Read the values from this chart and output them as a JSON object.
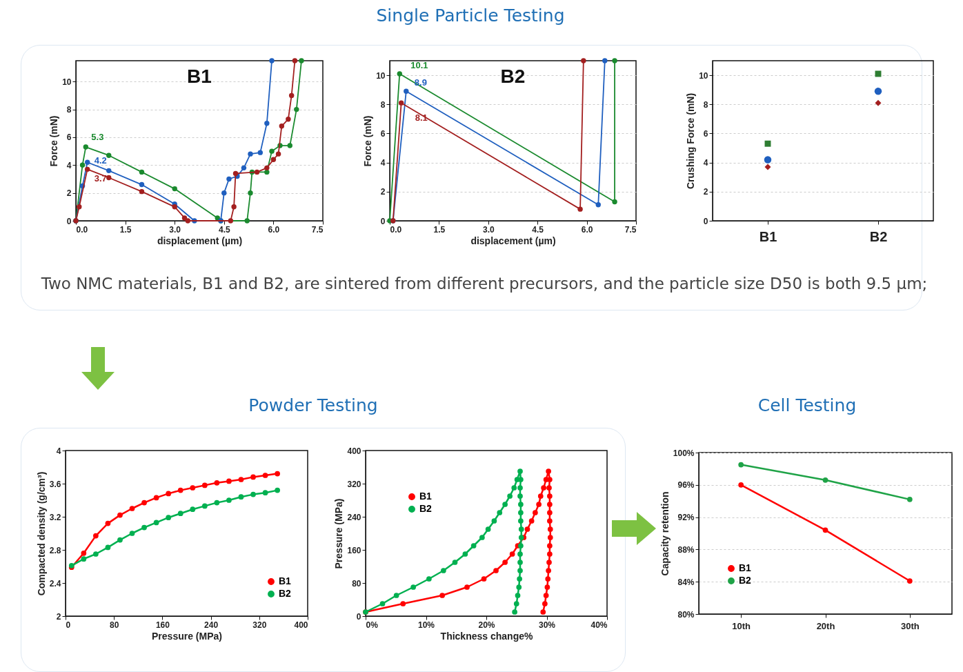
{
  "chart_data": [
    {
      "type": "line",
      "title": "B1",
      "xlabel": "displacement (µm)",
      "ylabel": "Force (mN)",
      "xlim": [
        0,
        7.5
      ],
      "ylim": [
        0,
        11.5
      ],
      "xticks": [
        {
          "value": 0,
          "label": "0.0"
        },
        1.5,
        {
          "value": 3,
          "label": "3.0"
        },
        4.5,
        {
          "value": 6,
          "label": "6.0"
        },
        7.5
      ],
      "yticks": [
        0,
        2,
        4,
        6,
        8,
        10
      ],
      "grid": "y",
      "marker": "circle",
      "line_style": "solid",
      "series": [
        {
          "color": "#1a8a2e",
          "x": [
            0,
            0.2,
            0.3,
            1,
            2,
            3,
            4.3,
            4.4,
            5.2,
            5.3,
            5.35,
            5.8,
            5.95,
            6.2,
            6.5,
            6.7,
            6.85
          ],
          "values": [
            0,
            4,
            5.3,
            4.7,
            3.5,
            2.3,
            0.2,
            0,
            0,
            2,
            3.5,
            3.5,
            5,
            5.4,
            5.4,
            8,
            11.5
          ]
        },
        {
          "color": "#1f5fbf",
          "x": [
            0,
            0.2,
            0.35,
            1,
            2,
            3,
            3.6,
            4.4,
            4.5,
            4.65,
            4.9,
            5.1,
            5.3,
            5.6,
            5.8,
            5.95
          ],
          "values": [
            0,
            2.5,
            4.2,
            3.6,
            2.6,
            1.2,
            0,
            0,
            2,
            3,
            3.2,
            3.8,
            4.8,
            4.9,
            7,
            11.5
          ]
        },
        {
          "color": "#a31f1f",
          "x": [
            0,
            0.1,
            0.35,
            1,
            2,
            3,
            3.3,
            3.4,
            4.7,
            4.8,
            4.85,
            5.5,
            5.8,
            6,
            6.15,
            6.25,
            6.45,
            6.55,
            6.65
          ],
          "values": [
            0,
            1,
            3.7,
            3.1,
            2.1,
            1,
            0.2,
            0,
            0,
            1,
            3.4,
            3.5,
            3.8,
            4.4,
            4.8,
            6.8,
            7.3,
            9,
            11.5
          ]
        }
      ],
      "annotations": [
        {
          "text": "5.3",
          "x": 0.3,
          "y": 5.3
        },
        {
          "text": "4.2",
          "x": 0.35,
          "y": 4.2
        },
        {
          "text": "3.7",
          "x": 0.35,
          "y": 3.7
        },
        "Single Particle Testing",
        "Two NMC materials, B1 and B2, are sintered from different precursors, and the particle size D50 is both 9.5 μm;"
      ]
    },
    {
      "type": "line",
      "title": "B2",
      "xlabel": "displacement (µm)",
      "ylabel": "Force (mN)",
      "xlim": [
        0,
        7.5
      ],
      "ylim": [
        0,
        11
      ],
      "xticks": [
        {
          "value": 0,
          "label": "0.0"
        },
        1.5,
        {
          "value": 3,
          "label": "3.0"
        },
        4.5,
        {
          "value": 6,
          "label": "6.0"
        },
        7.5
      ],
      "yticks": [
        0,
        2,
        4,
        6,
        8,
        10
      ],
      "grid": "y",
      "marker": "circle",
      "line_style": "solid",
      "series": [
        {
          "color": "#1a8a2e",
          "x": [
            0,
            0.3,
            6.85,
            6.85
          ],
          "values": [
            0,
            10.1,
            1.3,
            11
          ]
        },
        {
          "color": "#1f5fbf",
          "x": [
            0.1,
            0.5,
            6.35,
            6.55
          ],
          "values": [
            0,
            8.9,
            1.1,
            11
          ]
        },
        {
          "color": "#a31f1f",
          "x": [
            0.1,
            0.35,
            5.8,
            5.9
          ],
          "values": [
            0,
            8.1,
            0.8,
            11
          ]
        }
      ],
      "annotations": [
        {
          "text": "10.1",
          "x": 0.3,
          "y": 10.1
        },
        {
          "text": "8.9",
          "x": 0.5,
          "y": 8.9
        },
        {
          "text": "8.1",
          "x": 0.35,
          "y": 8.1
        }
      ]
    },
    {
      "type": "scatter",
      "ylabel": "Crushing Force (mN)",
      "categories": [
        "B1",
        "B2"
      ],
      "ylim": [
        0,
        11
      ],
      "yticks": [
        0,
        2,
        4,
        6,
        8,
        10
      ],
      "grid": "y",
      "series": [
        {
          "color": "#2e7d32",
          "marker": "square",
          "values": [
            5.3,
            10.1
          ]
        },
        {
          "color": "#1f5fbf",
          "marker": "circle",
          "values": [
            4.2,
            8.9
          ]
        },
        {
          "color": "#a31f1f",
          "marker": "diamond",
          "values": [
            3.7,
            8.1
          ]
        }
      ]
    },
    {
      "type": "line",
      "xlabel": "Pressure  (MPa)",
      "ylabel": "Compacted density  (g/cm³)",
      "x": [
        10,
        30,
        50,
        70,
        90,
        110,
        130,
        150,
        170,
        190,
        210,
        230,
        250,
        270,
        290,
        310,
        330,
        350
      ],
      "xlim": [
        0,
        400
      ],
      "ylim": [
        2,
        4
      ],
      "xticks": [
        0,
        80,
        160,
        240,
        320,
        400
      ],
      "yticks": [
        2,
        2.4,
        2.8,
        3.2,
        3.6,
        4
      ],
      "marker": "circle",
      "line_style": "solid",
      "legend": "bottom right",
      "series": [
        {
          "name": "B1",
          "color": "#ff0000",
          "values": [
            2.59,
            2.76,
            2.97,
            3.12,
            3.22,
            3.3,
            3.37,
            3.43,
            3.48,
            3.52,
            3.55,
            3.58,
            3.61,
            3.63,
            3.65,
            3.68,
            3.7,
            3.72
          ]
        },
        {
          "name": "B2",
          "color": "#00b050",
          "values": [
            2.61,
            2.69,
            2.75,
            2.83,
            2.92,
            3,
            3.07,
            3.13,
            3.19,
            3.24,
            3.29,
            3.33,
            3.37,
            3.4,
            3.44,
            3.47,
            3.49,
            3.52
          ]
        }
      ],
      "annotations": [
        "Powder Testing"
      ]
    },
    {
      "type": "line",
      "xlabel": "Thickness change%",
      "ylabel": "Pressure  (MPa)",
      "xlim": [
        0,
        40
      ],
      "ylim": [
        0,
        400
      ],
      "xticks": [
        {
          "value": 0,
          "label": "0%"
        },
        {
          "value": 10,
          "label": "10%"
        },
        {
          "value": 20,
          "label": "20%"
        },
        {
          "value": 30,
          "label": "30%"
        },
        {
          "value": 40,
          "label": "40%"
        }
      ],
      "yticks": [
        0,
        80,
        160,
        240,
        320,
        400
      ],
      "marker": "circle",
      "line_style": "solid",
      "legend": "top left",
      "series": [
        {
          "name": "B1",
          "color": "#ff0000",
          "x": [
            0,
            6.2,
            12.7,
            16.8,
            19.6,
            21.6,
            23.1,
            24.3,
            25.2,
            26.2,
            26.8,
            27.5,
            28.1,
            28.7,
            29,
            29.5,
            29.9,
            30.3,
            30.5,
            30.4,
            30.5,
            30.5,
            30.5,
            30.5,
            30.6,
            30.6,
            30.5,
            30.5,
            30.4,
            30.3,
            30.2,
            30.1,
            29.9,
            29.7,
            29.4
          ],
          "values": [
            10,
            30,
            50,
            70,
            90,
            110,
            130,
            150,
            170,
            190,
            210,
            230,
            250,
            270,
            290,
            310,
            330,
            350,
            330,
            310,
            290,
            270,
            250,
            230,
            210,
            190,
            170,
            150,
            130,
            110,
            90,
            70,
            50,
            30,
            10
          ]
        },
        {
          "name": "B2",
          "color": "#00b050",
          "x": [
            0,
            2.8,
            5.1,
            7.9,
            10.5,
            12.9,
            14.8,
            16.5,
            17.9,
            19.3,
            20.3,
            21.3,
            22.2,
            23.1,
            23.9,
            24.6,
            25.1,
            25.6,
            25.7,
            25.6,
            25.6,
            25.7,
            25.7,
            25.7,
            25.8,
            25.8,
            25.7,
            25.6,
            25.6,
            25.6,
            25.5,
            25.4,
            25.2,
            25,
            24.7
          ],
          "values": [
            10,
            30,
            50,
            70,
            90,
            110,
            130,
            150,
            170,
            190,
            210,
            230,
            250,
            270,
            290,
            310,
            330,
            350,
            330,
            310,
            290,
            270,
            250,
            230,
            210,
            190,
            170,
            150,
            130,
            110,
            90,
            70,
            50,
            30,
            10
          ]
        }
      ]
    },
    {
      "type": "line",
      "ylabel": "Capacity retention",
      "categories": [
        "10th",
        "20th",
        "30th"
      ],
      "ylim": [
        80,
        100
      ],
      "yticks": [
        {
          "value": 80,
          "label": "80%"
        },
        {
          "value": 84,
          "label": "84%"
        },
        {
          "value": 88,
          "label": "88%"
        },
        {
          "value": 92,
          "label": "92%"
        },
        {
          "value": 96,
          "label": "96%"
        },
        {
          "value": 100,
          "label": "100%"
        }
      ],
      "grid": "y",
      "marker": "circle",
      "line_style": "solid",
      "legend": "bottom left",
      "series": [
        {
          "name": "B1",
          "color": "#ff0000",
          "values": [
            96,
            90.4,
            84.1
          ]
        },
        {
          "name": "B2",
          "color": "#1fa347",
          "values": [
            98.5,
            96.6,
            94.2
          ]
        }
      ],
      "annotations": [
        "Cell Testing"
      ]
    }
  ]
}
